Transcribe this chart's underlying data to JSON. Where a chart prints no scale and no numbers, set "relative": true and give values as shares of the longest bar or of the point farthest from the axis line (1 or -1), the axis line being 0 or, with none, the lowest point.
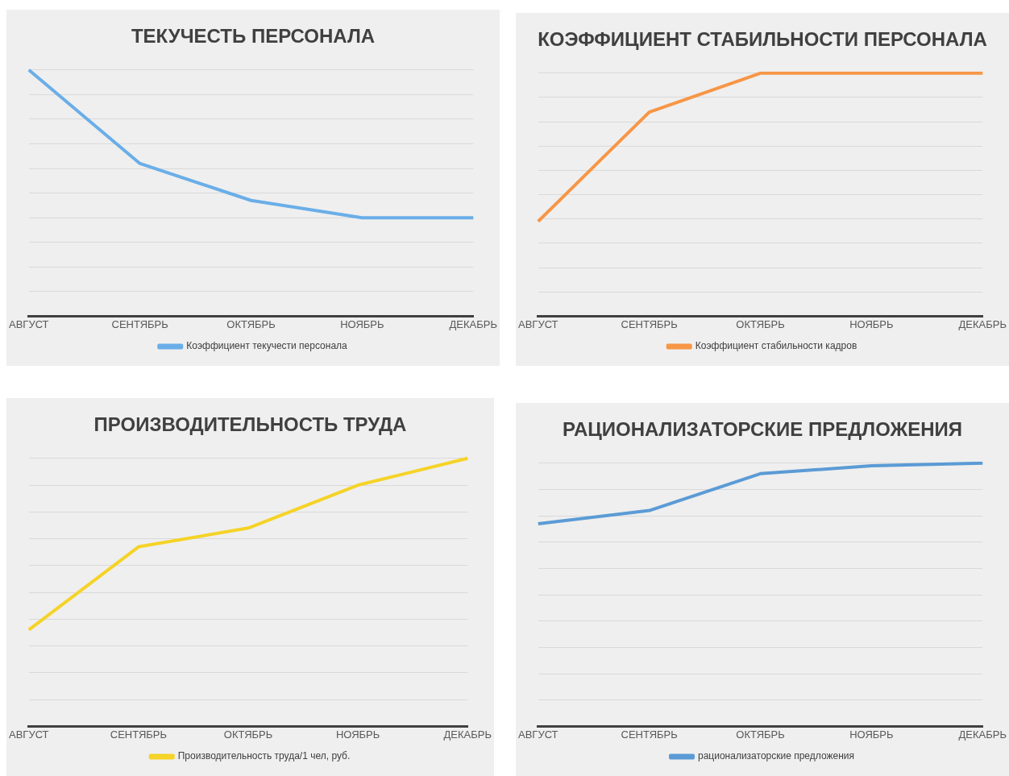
{
  "chart_data": [
    {
      "type": "line",
      "title": "ТЕКУЧЕСТЬ ПЕРСОНАЛА",
      "categories": [
        "АВГУСТ",
        "СЕНТЯБРЬ",
        "ОКТЯБРЬ",
        "НОЯБРЬ",
        "ДЕКАБРЬ"
      ],
      "relative": true,
      "grid": "y",
      "legend": "bottom",
      "marker": "none",
      "series": [
        {
          "name": "Коэффициент текучести персонала",
          "color": "#6aaee8",
          "values": [
            1,
            0.62,
            0.47,
            0.4,
            0.4
          ]
        }
      ]
    },
    {
      "type": "line",
      "title": "КОЭФФИЦИЕНТ СТАБИЛЬНОСТИ ПЕРСОНАЛА",
      "categories": [
        "АВГУСТ",
        "СЕНТЯБРЬ",
        "ОКТЯБРЬ",
        "НОЯБРЬ",
        "ДЕКАБРЬ"
      ],
      "relative": true,
      "grid": "y",
      "legend": "bottom",
      "marker": "none",
      "series": [
        {
          "name": "Коэффициент стабильности кадров",
          "color": "#f79646",
          "values": [
            0.39,
            0.84,
            1,
            1,
            1
          ]
        }
      ]
    },
    {
      "type": "line",
      "title": "ПРОИЗВОДИТЕЛЬНОСТЬ ТРУДА",
      "categories": [
        "АВГУСТ",
        "СЕНТЯБРЬ",
        "ОКТЯБРЬ",
        "НОЯБРЬ",
        "ДЕКАБРЬ"
      ],
      "relative": true,
      "grid": "y",
      "legend": "bottom",
      "marker": "none",
      "series": [
        {
          "name": "Производительность труда/1 чел, руб.",
          "color": "#f5d327",
          "values": [
            0.36,
            0.67,
            0.74,
            0.9,
            1
          ]
        }
      ]
    },
    {
      "type": "line",
      "title": "РАЦИОНАЛИЗАТОРСКИЕ ПРЕДЛОЖЕНИЯ",
      "categories": [
        "АВГУСТ",
        "СЕНТЯБРЬ",
        "ОКТЯБРЬ",
        "НОЯБРЬ",
        "ДЕКАБРЬ"
      ],
      "relative": true,
      "grid": "y",
      "legend": "bottom",
      "marker": "none",
      "series": [
        {
          "name": "рационализаторские предложения",
          "color": "#5b9bd5",
          "values": [
            0.77,
            0.82,
            0.96,
            0.99,
            1
          ]
        }
      ]
    }
  ]
}
